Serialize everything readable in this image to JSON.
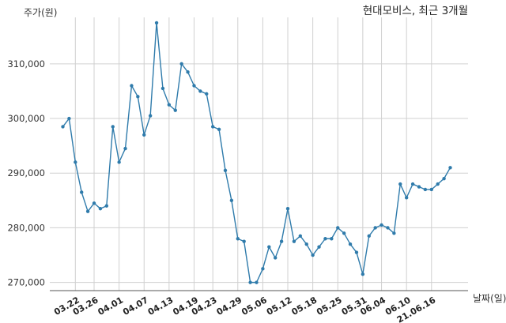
{
  "chart_data": {
    "type": "line",
    "title": "현대모비스, 최근 3개월",
    "ylabel": "주가(원)",
    "xlabel": "날짜(일)",
    "ylim": [
      268500,
      318500
    ],
    "yticks": [
      270000,
      280000,
      290000,
      300000,
      310000
    ],
    "ytick_labels": [
      "270,000",
      "280,000",
      "290,000",
      "300,000",
      "310,000"
    ],
    "xtick_labels": [
      "03.22",
      "03.26",
      "04.01",
      "04.07",
      "04.13",
      "04.19",
      "04.23",
      "04.29",
      "05.06",
      "05.12",
      "05.18",
      "05.25",
      "05.31",
      "06.04",
      "06.10",
      "21.06.16"
    ],
    "xtick_positions": [
      2,
      5,
      9,
      13,
      17,
      21,
      24,
      28,
      32,
      36,
      40,
      44,
      48,
      51,
      55,
      59
    ],
    "grid": true,
    "color": "#2f7bab",
    "series": [
      {
        "name": "",
        "values": [
          298500,
          300000,
          292000,
          286500,
          283000,
          284500,
          283500,
          284000,
          298500,
          292000,
          294500,
          306000,
          304000,
          297000,
          300500,
          317500,
          305500,
          302500,
          301500,
          310000,
          308500,
          306000,
          305000,
          304500,
          298500,
          298000,
          290500,
          285000,
          278000,
          277500,
          270000,
          270000,
          272500,
          276500,
          274500,
          277500,
          283500,
          277500,
          278500,
          277000,
          275000,
          276500,
          278000,
          278000,
          280000,
          279000,
          277000,
          275500,
          271500,
          278500,
          280000,
          280500,
          280000,
          279000,
          288000,
          285500,
          288000,
          287500,
          287000,
          287000,
          288000,
          289000,
          291000
        ]
      }
    ]
  }
}
